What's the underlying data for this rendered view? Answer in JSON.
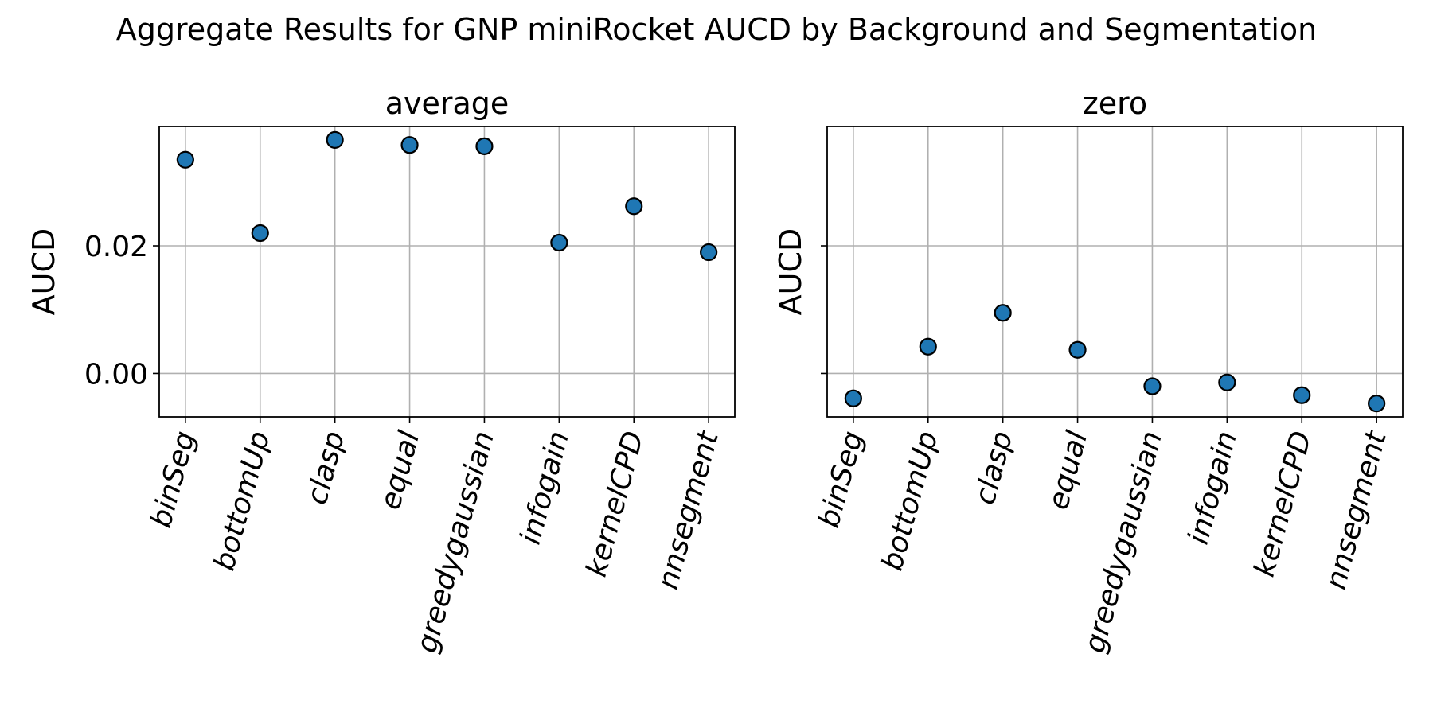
{
  "chart_data": {
    "title": "Aggregate Results for GNP miniRocket AUCD by Background and Segmentation",
    "type": "scatter",
    "grid": true,
    "marker_color": "#1f77b4",
    "marker_edge_color": "#000000",
    "y_ticks": [
      0.0,
      0.02
    ],
    "y_tick_labels": [
      "0.00",
      "0.02"
    ],
    "ylim": [
      -0.0068,
      0.0387
    ],
    "subplots": [
      {
        "title": "average",
        "ylabel": "AUCD",
        "show_y_tick_labels": true,
        "categories": [
          "binSeg",
          "bottomUp",
          "clasp",
          "equal",
          "greedygaussian",
          "infogain",
          "kernelCPD",
          "nnsegment"
        ],
        "values": [
          0.0335,
          0.022,
          0.0366,
          0.0358,
          0.0356,
          0.0205,
          0.0262,
          0.019
        ]
      },
      {
        "title": "zero",
        "ylabel": "AUCD",
        "show_y_tick_labels": false,
        "categories": [
          "binSeg",
          "bottomUp",
          "clasp",
          "equal",
          "greedygaussian",
          "infogain",
          "kernelCPD",
          "nnsegment"
        ],
        "values": [
          -0.0039,
          0.0042,
          0.0095,
          0.0037,
          -0.002,
          -0.0014,
          -0.0034,
          -0.0047
        ]
      }
    ]
  }
}
